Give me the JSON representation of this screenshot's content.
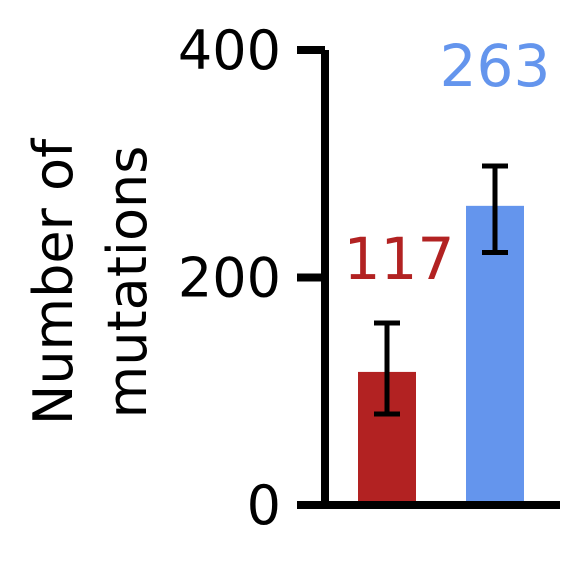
{
  "chart_data": {
    "type": "bar",
    "ylabel": [
      "Number of",
      "mutations"
    ],
    "ylim": [
      0,
      400
    ],
    "yticks": [
      0,
      200,
      400
    ],
    "grid": false,
    "legend": "none",
    "bars": [
      {
        "value": 117,
        "error_low": 80,
        "error_high": 160,
        "label": "117",
        "color": "#b22222"
      },
      {
        "value": 263,
        "error_low": 222,
        "error_high": 298,
        "label": "263",
        "color": "#6495ed"
      }
    ]
  }
}
